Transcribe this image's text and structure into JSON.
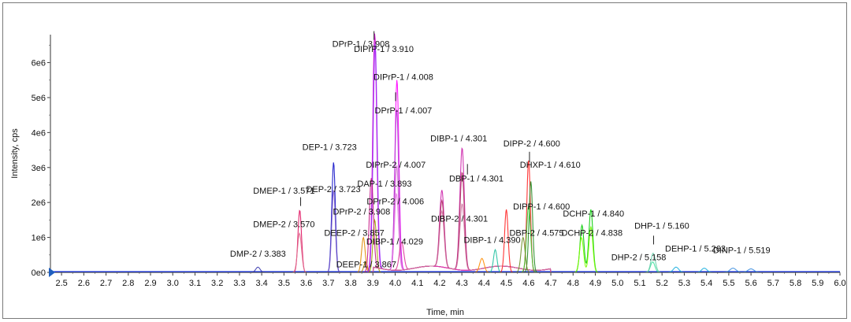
{
  "chart_data": {
    "type": "line",
    "title": "",
    "xlabel": "Time, min",
    "ylabel": "Intensity, cps",
    "xlim": [
      2.45,
      6.0
    ],
    "ylim": [
      0,
      6800000
    ],
    "grid": false,
    "x_ticks": [
      "2.5",
      "2.6",
      "2.7",
      "2.8",
      "2.9",
      "3.0",
      "3.1",
      "3.2",
      "3.3",
      "3.4",
      "3.5",
      "3.6",
      "3.7",
      "3.8",
      "3.9",
      "4.0",
      "4.1",
      "4.2",
      "4.3",
      "4.4",
      "4.5",
      "4.6",
      "4.7",
      "4.8",
      "4.9",
      "5.0",
      "5.1",
      "5.2",
      "5.3",
      "5.4",
      "5.5",
      "5.6",
      "5.7",
      "5.8",
      "5.9",
      "6.0"
    ],
    "y_ticks": [
      {
        "value": 0,
        "label": "0e0"
      },
      {
        "value": 1000000,
        "label": "1e6"
      },
      {
        "value": 2000000,
        "label": "2e6"
      },
      {
        "value": 3000000,
        "label": "3e6"
      },
      {
        "value": 4000000,
        "label": "4e6"
      },
      {
        "value": 5000000,
        "label": "5e6"
      },
      {
        "value": 6000000,
        "label": "6e6"
      }
    ],
    "series": [
      {
        "color": "#3b3bb0",
        "peaks": [
          {
            "rt": 3.383,
            "h": 150000,
            "w": 0.01
          }
        ]
      },
      {
        "color": "#e0115f",
        "peaks": [
          {
            "rt": 3.571,
            "h": 1780000,
            "w": 0.008
          }
        ]
      },
      {
        "color": "#e07090",
        "peaks": [
          {
            "rt": 3.57,
            "h": 1120000,
            "w": 0.009
          }
        ]
      },
      {
        "color": "#1010c8",
        "peaks": [
          {
            "rt": 3.723,
            "h": 3150000,
            "w": 0.008
          }
        ]
      },
      {
        "color": "#7a5ac8",
        "peaks": [
          {
            "rt": 3.723,
            "h": 2350000,
            "w": 0.008
          }
        ]
      },
      {
        "color": "#e08a00",
        "peaks": [
          {
            "rt": 3.857,
            "h": 1000000,
            "w": 0.008
          }
        ]
      },
      {
        "color": "#b8860b",
        "peaks": [
          {
            "rt": 3.867,
            "h": 300000,
            "w": 0.008
          }
        ]
      },
      {
        "color": "#a0a000",
        "peaks": [
          {
            "rt": 3.908,
            "h": 1500000,
            "w": 0.008
          }
        ]
      },
      {
        "color": "#cc00cc",
        "peaks": [
          {
            "rt": 3.908,
            "h": 6700000,
            "w": 0.009
          }
        ]
      },
      {
        "color": "#9b30ff",
        "peaks": [
          {
            "rt": 3.91,
            "h": 6400000,
            "w": 0.009
          }
        ]
      },
      {
        "color": "#c71585",
        "peaks": [
          {
            "rt": 3.893,
            "h": 2700000,
            "w": 0.009
          }
        ]
      },
      {
        "color": "#ff00ff",
        "peaks": [
          {
            "rt": 4.008,
            "h": 5450000,
            "w": 0.009
          }
        ]
      },
      {
        "color": "#b040d0",
        "peaks": [
          {
            "rt": 4.007,
            "h": 4600000,
            "w": 0.009
          }
        ]
      },
      {
        "color": "#d46ad4",
        "peaks": [
          {
            "rt": 4.007,
            "h": 3000000,
            "w": 0.009
          }
        ]
      },
      {
        "color": "#e87ee8",
        "peaks": [
          {
            "rt": 4.006,
            "h": 2200000,
            "w": 0.009
          }
        ]
      },
      {
        "color": "#dd3399",
        "peaks": [
          {
            "rt": 4.029,
            "h": 800000,
            "w": 0.01
          }
        ]
      },
      {
        "color": "#cc22aa",
        "peaks": [
          {
            "rt": 4.21,
            "h": 2200000,
            "w": 0.01
          },
          {
            "rt": 4.301,
            "h": 3500000,
            "w": 0.01
          }
        ]
      },
      {
        "color": "#b03060",
        "peaks": [
          {
            "rt": 4.21,
            "h": 1900000,
            "w": 0.01
          },
          {
            "rt": 4.301,
            "h": 2800000,
            "w": 0.01
          }
        ]
      },
      {
        "color": "#d070a0",
        "peaks": [
          {
            "rt": 4.21,
            "h": 1600000,
            "w": 0.01
          },
          {
            "rt": 4.301,
            "h": 1900000,
            "w": 0.01
          }
        ]
      },
      {
        "color": "#20c0a0",
        "peaks": [
          {
            "rt": 4.45,
            "h": 650000,
            "w": 0.008
          }
        ]
      },
      {
        "color": "#ff8c00",
        "peaks": [
          {
            "rt": 4.39,
            "h": 400000,
            "w": 0.01
          }
        ]
      },
      {
        "color": "#ff2020",
        "peaks": [
          {
            "rt": 4.5,
            "h": 1800000,
            "w": 0.008
          },
          {
            "rt": 4.6,
            "h": 3200000,
            "w": 0.008
          }
        ]
      },
      {
        "color": "#228b22",
        "peaks": [
          {
            "rt": 4.61,
            "h": 2600000,
            "w": 0.008
          }
        ]
      },
      {
        "color": "#32cd32",
        "peaks": [
          {
            "rt": 4.6,
            "h": 1900000,
            "w": 0.009
          }
        ]
      },
      {
        "color": "#6b8e23",
        "peaks": [
          {
            "rt": 4.575,
            "h": 1000000,
            "w": 0.009
          }
        ]
      },
      {
        "color": "#00cc00",
        "peaks": [
          {
            "rt": 4.84,
            "h": 1350000,
            "w": 0.009
          },
          {
            "rt": 4.88,
            "h": 1800000,
            "w": 0.009
          }
        ]
      },
      {
        "color": "#7cfc00",
        "peaks": [
          {
            "rt": 4.838,
            "h": 1000000,
            "w": 0.009
          },
          {
            "rt": 4.88,
            "h": 1300000,
            "w": 0.009
          }
        ]
      },
      {
        "color": "#40e0a0",
        "peaks": [
          {
            "rt": 5.158,
            "h": 300000,
            "w": 0.01
          }
        ]
      },
      {
        "color": "#66cdaa",
        "peaks": [
          {
            "rt": 5.16,
            "h": 550000,
            "w": 0.01
          }
        ]
      },
      {
        "color": "#20b0e0",
        "peaks": [
          {
            "rt": 5.263,
            "h": 150000,
            "w": 0.012
          },
          {
            "rt": 5.39,
            "h": 120000,
            "w": 0.012
          }
        ]
      },
      {
        "color": "#4090e0",
        "peaks": [
          {
            "rt": 5.519,
            "h": 120000,
            "w": 0.014
          },
          {
            "rt": 5.6,
            "h": 100000,
            "w": 0.014
          }
        ]
      },
      {
        "color": "#1e3cff",
        "peaks": []
      }
    ],
    "annotations": [
      {
        "text": "DMP-2 / 3.383",
        "x": 3.383,
        "y": 450000,
        "anchor": "middle"
      },
      {
        "text": "DMEP-1 / 3.571",
        "x": 3.5,
        "y": 2250000,
        "anchor": "middle"
      },
      {
        "text": "DMEP-2 / 3.570",
        "x": 3.5,
        "y": 1300000,
        "anchor": "middle"
      },
      {
        "text": "DEP-1 / 3.723",
        "x": 3.705,
        "y": 3500000,
        "anchor": "middle"
      },
      {
        "text": "DEP-2 / 3.723",
        "x": 3.722,
        "y": 2300000,
        "anchor": "middle"
      },
      {
        "text": "DPrP-2 / 3.908",
        "x": 3.849,
        "y": 1650000,
        "anchor": "middle"
      },
      {
        "text": "DEEP-2 / 3.857",
        "x": 3.816,
        "y": 1050000,
        "anchor": "middle"
      },
      {
        "text": "DEEP-1 / 3.867",
        "x": 3.87,
        "y": 150000,
        "anchor": "middle"
      },
      {
        "text": "DPrP-1 / 3.908",
        "x": 3.846,
        "y": 6450000,
        "anchor": "middle"
      },
      {
        "text": "DIPrP-1 / 3.910",
        "x": 3.949,
        "y": 6300000,
        "anchor": "middle"
      },
      {
        "text": "DIPrP-1 / 4.008",
        "x": 4.037,
        "y": 5500000,
        "anchor": "middle"
      },
      {
        "text": "DPrP-1 / 4.007",
        "x": 4.037,
        "y": 4550000,
        "anchor": "middle"
      },
      {
        "text": "DIPrP-2 / 4.007",
        "x": 4.003,
        "y": 3000000,
        "anchor": "middle"
      },
      {
        "text": "DPrP-2 / 4.006",
        "x": 4.001,
        "y": 1950000,
        "anchor": "middle"
      },
      {
        "text": "DAP-1 / 3.893",
        "x": 3.952,
        "y": 2450000,
        "anchor": "middle"
      },
      {
        "text": "DIBP-1 / 4.029",
        "x": 3.998,
        "y": 800000,
        "anchor": "middle"
      },
      {
        "text": "DIBP-1 / 4.301",
        "x": 4.286,
        "y": 3750000,
        "anchor": "middle"
      },
      {
        "text": "DBP-1 / 4.301",
        "x": 4.365,
        "y": 2600000,
        "anchor": "middle"
      },
      {
        "text": "DIBP-2 / 4.301",
        "x": 4.289,
        "y": 1450000,
        "anchor": "middle"
      },
      {
        "text": "DIBP-1 / 4.390",
        "x": 4.436,
        "y": 850000,
        "anchor": "middle"
      },
      {
        "text": "DIPP-2 / 4.600",
        "x": 4.614,
        "y": 3600000,
        "anchor": "middle"
      },
      {
        "text": "DHXP-1 / 4.610",
        "x": 4.697,
        "y": 3000000,
        "anchor": "middle"
      },
      {
        "text": "DIPP-1 / 4.600",
        "x": 4.658,
        "y": 1800000,
        "anchor": "middle"
      },
      {
        "text": "DBP-2 / 4.575",
        "x": 4.636,
        "y": 1050000,
        "anchor": "middle"
      },
      {
        "text": "DCHP-1 / 4.840",
        "x": 4.892,
        "y": 1600000,
        "anchor": "middle"
      },
      {
        "text": "DCHP-2 / 4.838",
        "x": 4.885,
        "y": 1050000,
        "anchor": "middle"
      },
      {
        "text": "DHP-1 / 5.160",
        "x": 5.199,
        "y": 1250000,
        "anchor": "middle"
      },
      {
        "text": "DHP-2 / 5.158",
        "x": 5.095,
        "y": 350000,
        "anchor": "middle"
      },
      {
        "text": "DEHP-1 / 5.263",
        "x": 5.35,
        "y": 600000,
        "anchor": "middle"
      },
      {
        "text": "DINP-1 / 5.519",
        "x": 5.558,
        "y": 550000,
        "anchor": "middle"
      }
    ],
    "leader_lines": [
      {
        "x": 3.575,
        "y1": 1900000,
        "y2": 2150000
      },
      {
        "x": 4.002,
        "y1": 4900000,
        "y2": 5150000
      },
      {
        "x": 3.905,
        "y1": 6650000,
        "y2": 6900000
      },
      {
        "x": 4.604,
        "y1": 3150000,
        "y2": 3450000
      },
      {
        "x": 5.162,
        "y1": 800000,
        "y2": 1050000
      },
      {
        "x": 4.325,
        "y1": 2800000,
        "y2": 3100000
      }
    ],
    "marker": {
      "type": "arrow",
      "color": "#1f5fbf",
      "x": 2.45,
      "y": 0
    }
  }
}
